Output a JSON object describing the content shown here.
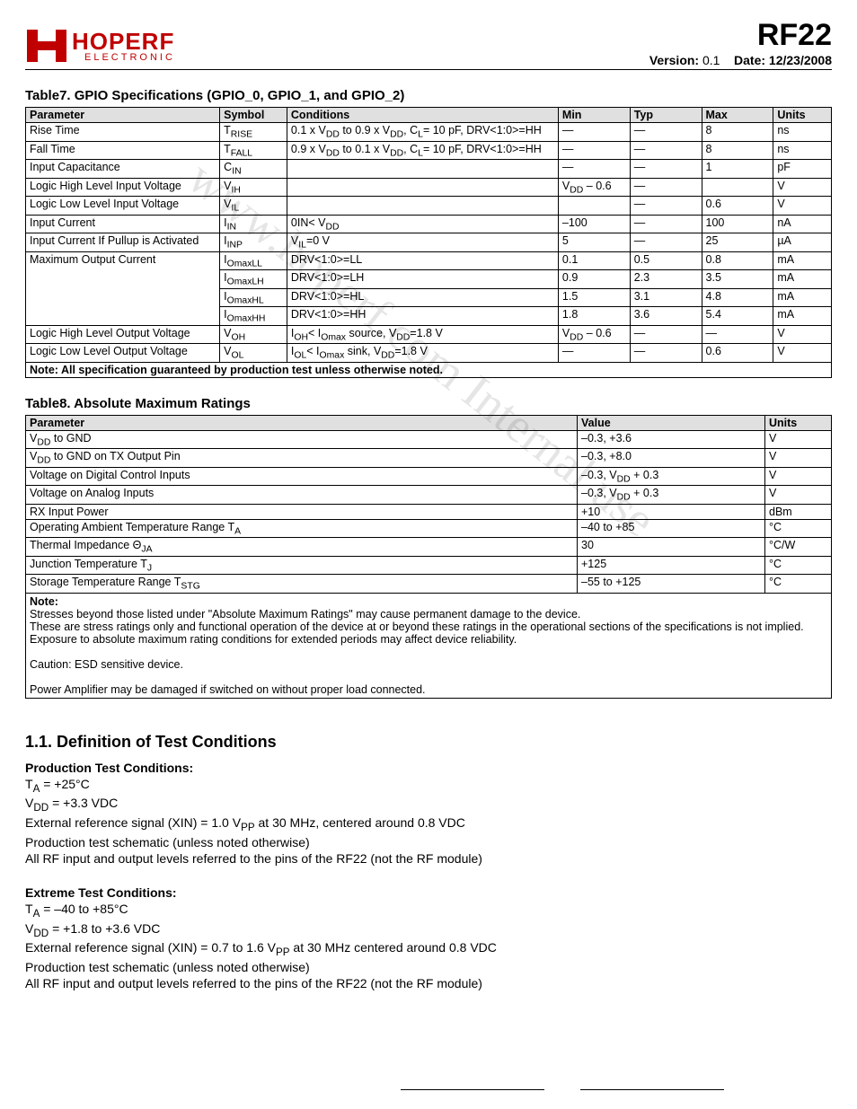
{
  "header": {
    "logo_main": "HOPERF",
    "logo_sub": "ELECTRONIC",
    "part": "RF22",
    "version_label": "Version:",
    "version_value": "0.1",
    "date_label": "Date:",
    "date_value": "12/23/2008"
  },
  "watermark": "www.hoperf.com Internal use",
  "table7": {
    "title": "Table7. GPIO Specifications (GPIO_0, GPIO_1, and GPIO_2)",
    "headers": [
      "Parameter",
      "Symbol",
      "Conditions",
      "Min",
      "Typ",
      "Max",
      "Units"
    ],
    "rows": [
      {
        "p": "Rise Time",
        "s": "T<sub>RISE</sub>",
        "c": "0.1 x V<sub>DD</sub> to 0.9 x V<sub>DD</sub>, C<sub>L</sub>= 10 pF, DRV<1:0>=HH",
        "min": "—",
        "typ": "—",
        "max": "8",
        "u": "ns"
      },
      {
        "p": "Fall Time",
        "s": "T<sub>FALL</sub>",
        "c": "0.9 x V<sub>DD</sub> to 0.1 x V<sub>DD</sub>, C<sub>L</sub>= 10 pF, DRV<1:0>=HH",
        "min": "—",
        "typ": "—",
        "max": "8",
        "u": "ns"
      },
      {
        "p": "Input Capacitance",
        "s": "C<sub>IN</sub>",
        "c": "",
        "min": "—",
        "typ": "—",
        "max": "1",
        "u": "pF"
      },
      {
        "p": "Logic High Level Input Voltage",
        "s": "V<sub>IH</sub>",
        "c": "",
        "min": "V<sub>DD</sub> – 0.6",
        "typ": "—",
        "max": "",
        "u": "V"
      },
      {
        "p": "Logic Low Level Input Voltage",
        "s": "V<sub>IL</sub>",
        "c": "",
        "min": "",
        "typ": "—",
        "max": "0.6",
        "u": "V"
      },
      {
        "p": "Input Current",
        "s": "I<sub>IN</sub>",
        "c": "0<V<sub>IN</sub>< V<sub>DD</sub>",
        "min": "–100",
        "typ": "—",
        "max": "100",
        "u": "nA"
      },
      {
        "p": "Input Current If Pullup is Activated",
        "s": "I<sub>INP</sub>",
        "c": "V<sub>IL</sub>=0 V",
        "min": "5",
        "typ": "—",
        "max": "25",
        "u": "µA"
      }
    ],
    "maxout_label": "Maximum Output Current",
    "maxout": [
      {
        "s": "I<sub>OmaxLL</sub>",
        "c": "DRV<1:0>=LL",
        "min": "0.1",
        "typ": "0.5",
        "max": "0.8",
        "u": "mA"
      },
      {
        "s": "I<sub>OmaxLH</sub>",
        "c": "DRV<1:0>=LH",
        "min": "0.9",
        "typ": "2.3",
        "max": "3.5",
        "u": "mA"
      },
      {
        "s": "I<sub>OmaxHL</sub>",
        "c": "DRV<1:0>=HL",
        "min": "1.5",
        "typ": "3.1",
        "max": "4.8",
        "u": "mA"
      },
      {
        "s": "I<sub>OmaxHH</sub>",
        "c": "DRV<1:0>=HH",
        "min": "1.8",
        "typ": "3.6",
        "max": "5.4",
        "u": "mA"
      }
    ],
    "tail_rows": [
      {
        "p": "Logic High Level Output Voltage",
        "s": "V<sub>OH</sub>",
        "c": "I<sub>OH</sub>< I<sub>Omax</sub> source, V<sub>DD</sub>=1.8 V",
        "min": "V<sub>DD</sub> – 0.6",
        "typ": "—",
        "max": "—",
        "u": "V"
      },
      {
        "p": "Logic Low Level Output Voltage",
        "s": "V<sub>OL</sub>",
        "c": "I<sub>OL</sub>< I<sub>Omax</sub> sink, V<sub>DD</sub>=1.8 V",
        "min": "—",
        "typ": "—",
        "max": "0.6",
        "u": "V"
      }
    ],
    "note": "Note: All specification guaranteed by production test unless otherwise noted."
  },
  "table8": {
    "title": "Table8. Absolute Maximum Ratings",
    "headers": [
      "Parameter",
      "Value",
      "Units"
    ],
    "rows": [
      {
        "p": "V<sub>DD</sub> to GND",
        "v": "–0.3, +3.6",
        "u": "V"
      },
      {
        "p": "V<sub>DD</sub> to GND on TX Output Pin",
        "v": "–0.3, +8.0",
        "u": "V"
      },
      {
        "p": "Voltage on Digital Control Inputs",
        "v": "–0.3, V<sub>DD</sub> + 0.3",
        "u": "V"
      },
      {
        "p": "Voltage on Analog Inputs",
        "v": "–0.3, V<sub>DD</sub> + 0.3",
        "u": "V"
      },
      {
        "p": "RX Input Power",
        "v": "+10",
        "u": "dBm"
      },
      {
        "p": "Operating Ambient Temperature Range T<sub>A</sub>",
        "v": "–40 to +85",
        "u": "°C"
      },
      {
        "p": "Thermal Impedance Θ<sub>JA</sub>",
        "v": "30",
        "u": "°C/W"
      },
      {
        "p": "Junction Temperature T<sub>J</sub>",
        "v": "+125",
        "u": "°C"
      },
      {
        "p": "Storage Temperature Range T<sub>STG</sub>",
        "v": "–55 to +125",
        "u": "°C"
      }
    ],
    "notes_title": "Note:",
    "notes": [
      "Stresses beyond those listed under \"Absolute Maximum Ratings\" may cause permanent damage to the device.",
      "These are stress ratings only and functional operation of the device at or beyond these ratings in the operational sections of the specifications is not implied. Exposure to absolute maximum rating conditions for extended periods may affect device reliability.",
      "",
      "Caution: ESD sensitive device.",
      "",
      "Power Amplifier may be damaged if switched on without proper load connected."
    ]
  },
  "section": {
    "title": "1.1. Definition of Test Conditions",
    "prod_title": "Production Test Conditions:",
    "prod_lines": [
      "T<sub>A</sub> = +25°C",
      "V<sub>DD</sub> = +3.3 VDC",
      "External reference signal (XIN) = 1.0 V<sub>PP</sub> at 30 MHz, centered around 0.8 VDC",
      "Production test schematic (unless noted otherwise)",
      "All RF input and output levels referred to the pins of the RF22 (not the RF module)"
    ],
    "ext_title": "Extreme Test Conditions:",
    "ext_lines": [
      "T<sub>A</sub> = –40 to +85°C",
      "V<sub>DD</sub> = +1.8 to +3.6 VDC",
      "External reference signal (XIN) = 0.7 to 1.6 V<sub>PP</sub> at 30 MHz centered around 0.8 VDC",
      "Production test schematic (unless noted otherwise)",
      "All RF input and output levels referred to the pins of the RF22 (not the RF module)"
    ]
  }
}
